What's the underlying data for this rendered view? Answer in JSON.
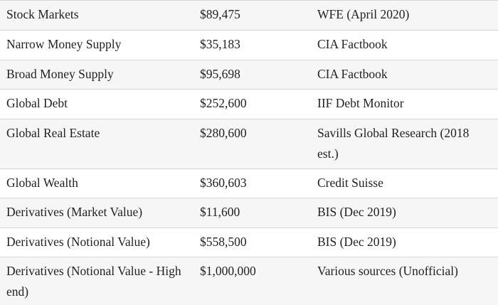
{
  "rows": [
    {
      "asset": "Stock Markets",
      "value": "$89,475",
      "source": "WFE (April 2020)"
    },
    {
      "asset": "Narrow Money Supply",
      "value": "$35,183",
      "source": "CIA Factbook"
    },
    {
      "asset": "Broad Money Supply",
      "value": "$95,698",
      "source": "CIA Factbook"
    },
    {
      "asset": "Global Debt",
      "value": "$252,600",
      "source": "IIF Debt Monitor"
    },
    {
      "asset": "Global Real Estate",
      "value": "$280,600",
      "source": "Savills Global Research (2018 est.)"
    },
    {
      "asset": "Global Wealth",
      "value": "$360,603",
      "source": "Credit Suisse"
    },
    {
      "asset": "Derivatives (Market Value)",
      "value": "$11,600",
      "source": "BIS (Dec 2019)"
    },
    {
      "asset": "Derivatives (Notional Value)",
      "value": "$558,500",
      "source": "BIS (Dec 2019)"
    },
    {
      "asset": "Derivatives (Notional Value - High end)",
      "value": "$1,000,000",
      "source": "Various sources (Unofficial)"
    }
  ]
}
